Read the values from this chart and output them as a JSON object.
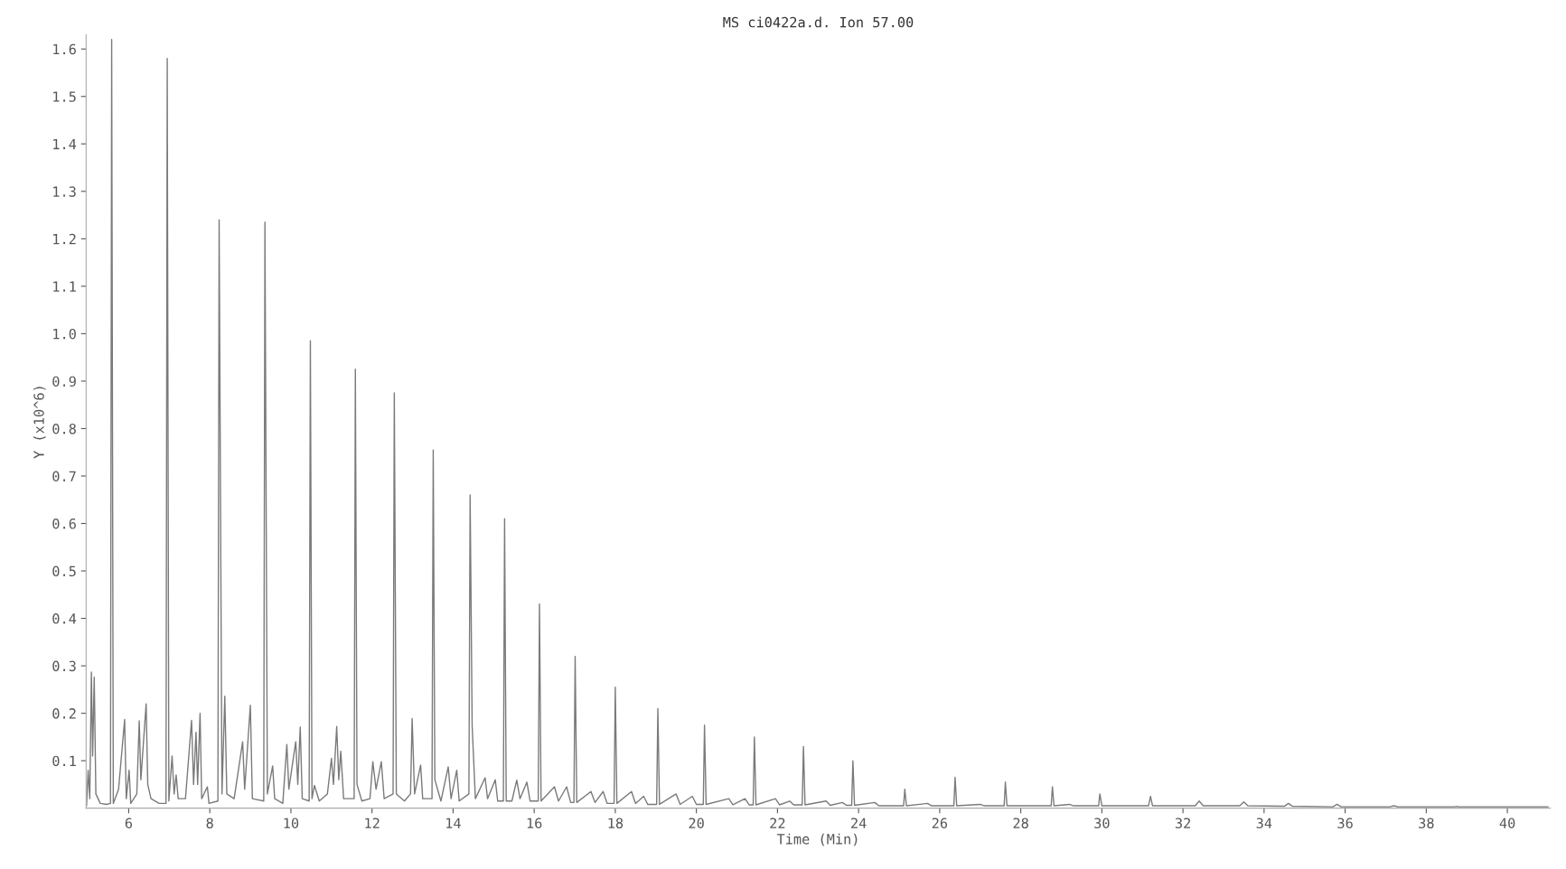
{
  "chart_data": {
    "type": "line",
    "title": "MS ci0422a.d. Ion 57.00",
    "xlabel": "Time (Min)",
    "ylabel": "Y (x10^6)",
    "xlim": [
      4.95,
      41.06
    ],
    "xticks": [
      6,
      8,
      10,
      12,
      14,
      16,
      18,
      20,
      22,
      24,
      26,
      28,
      30,
      32,
      34,
      36,
      38,
      40
    ],
    "ylim": [
      0,
      1.63
    ],
    "yticks": [
      0.1,
      0.2,
      0.3,
      0.4,
      0.5,
      0.6,
      0.7,
      0.8,
      0.9,
      {
        "value": 1.0,
        "label": "1.0"
      },
      1.1,
      1.2,
      1.3,
      1.4,
      1.5,
      1.6
    ],
    "grid": false,
    "series": [
      {
        "color": "#7a7a7a",
        "x": [
          4.96,
          5.0,
          5.04,
          5.08,
          5.11,
          5.15,
          5.19,
          5.3,
          5.45,
          5.55,
          5.58,
          5.62,
          5.75,
          5.9,
          5.94,
          6.01,
          6.05,
          6.2,
          6.26,
          6.3,
          6.43,
          6.47,
          6.55,
          6.75,
          6.92,
          6.95,
          6.99,
          7.07,
          7.12,
          7.17,
          7.22,
          7.4,
          7.55,
          7.6,
          7.66,
          7.7,
          7.76,
          7.8,
          7.94,
          7.98,
          8.2,
          8.23,
          8.3,
          8.37,
          8.42,
          8.6,
          8.81,
          8.86,
          9.0,
          9.05,
          9.33,
          9.36,
          9.42,
          9.55,
          9.6,
          9.8,
          9.9,
          9.95,
          10.05,
          10.12,
          10.17,
          10.23,
          10.28,
          10.45,
          10.48,
          10.52,
          10.58,
          10.7,
          10.9,
          11.0,
          11.05,
          11.13,
          11.18,
          11.23,
          11.3,
          11.56,
          11.59,
          11.63,
          11.75,
          11.95,
          12.02,
          12.1,
          12.23,
          12.3,
          12.52,
          12.55,
          12.6,
          12.8,
          12.95,
          12.99,
          13.05,
          13.2,
          13.25,
          13.48,
          13.51,
          13.55,
          13.7,
          13.88,
          13.95,
          14.09,
          14.15,
          14.39,
          14.42,
          14.47,
          14.55,
          14.79,
          14.85,
          15.04,
          15.1,
          15.24,
          15.27,
          15.31,
          15.45,
          15.57,
          15.65,
          15.82,
          15.9,
          16.1,
          16.13,
          16.17,
          16.5,
          16.6,
          16.8,
          16.9,
          16.98,
          17.01,
          17.05,
          17.4,
          17.5,
          17.7,
          17.8,
          17.97,
          18.0,
          18.04,
          18.4,
          18.5,
          18.7,
          18.8,
          19.02,
          19.05,
          19.09,
          19.5,
          19.6,
          19.9,
          20.0,
          20.17,
          20.2,
          20.24,
          20.8,
          20.9,
          21.2,
          21.3,
          21.4,
          21.43,
          21.47,
          21.95,
          22.05,
          22.3,
          22.4,
          22.61,
          22.64,
          22.68,
          23.2,
          23.3,
          23.6,
          23.7,
          23.83,
          23.86,
          23.9,
          24.4,
          24.5,
          25.11,
          25.14,
          25.18,
          25.7,
          25.8,
          26.35,
          26.38,
          26.42,
          27.0,
          27.1,
          27.59,
          27.62,
          27.66,
          28.75,
          28.78,
          28.82,
          29.2,
          29.3,
          29.92,
          29.95,
          30.0,
          31.15,
          31.2,
          31.25,
          32.3,
          32.4,
          32.5,
          33.4,
          33.5,
          33.6,
          34.5,
          34.6,
          34.7,
          35.7,
          35.8,
          35.9,
          37.1,
          37.2,
          37.3,
          38.7,
          38.75,
          38.8,
          41.0
        ],
        "values": [
          0.005,
          0.08,
          0.02,
          0.287,
          0.11,
          0.276,
          0.03,
          0.01,
          0.008,
          0.01,
          1.62,
          0.01,
          0.04,
          0.187,
          0.02,
          0.08,
          0.01,
          0.03,
          0.184,
          0.06,
          0.22,
          0.05,
          0.02,
          0.01,
          0.01,
          1.58,
          0.015,
          0.11,
          0.03,
          0.07,
          0.02,
          0.02,
          0.185,
          0.05,
          0.16,
          0.05,
          0.2,
          0.02,
          0.045,
          0.01,
          0.015,
          1.24,
          0.03,
          0.236,
          0.03,
          0.02,
          0.14,
          0.04,
          0.217,
          0.02,
          0.015,
          1.235,
          0.03,
          0.089,
          0.02,
          0.01,
          0.134,
          0.04,
          0.1,
          0.14,
          0.05,
          0.171,
          0.02,
          0.015,
          0.985,
          0.02,
          0.048,
          0.015,
          0.03,
          0.105,
          0.05,
          0.172,
          0.06,
          0.12,
          0.02,
          0.02,
          0.925,
          0.05,
          0.015,
          0.02,
          0.098,
          0.04,
          0.098,
          0.02,
          0.03,
          0.875,
          0.03,
          0.015,
          0.03,
          0.189,
          0.03,
          0.091,
          0.02,
          0.02,
          0.755,
          0.06,
          0.015,
          0.087,
          0.02,
          0.08,
          0.015,
          0.03,
          0.66,
          0.173,
          0.02,
          0.064,
          0.02,
          0.06,
          0.015,
          0.015,
          0.61,
          0.015,
          0.015,
          0.059,
          0.02,
          0.055,
          0.015,
          0.015,
          0.43,
          0.015,
          0.045,
          0.015,
          0.045,
          0.012,
          0.012,
          0.32,
          0.012,
          0.035,
          0.012,
          0.035,
          0.01,
          0.01,
          0.255,
          0.01,
          0.035,
          0.01,
          0.025,
          0.008,
          0.008,
          0.21,
          0.008,
          0.03,
          0.008,
          0.025,
          0.008,
          0.008,
          0.175,
          0.008,
          0.02,
          0.007,
          0.02,
          0.007,
          0.007,
          0.15,
          0.007,
          0.02,
          0.007,
          0.015,
          0.007,
          0.007,
          0.13,
          0.007,
          0.015,
          0.006,
          0.012,
          0.006,
          0.006,
          0.1,
          0.006,
          0.012,
          0.005,
          0.005,
          0.04,
          0.005,
          0.01,
          0.005,
          0.005,
          0.065,
          0.005,
          0.008,
          0.005,
          0.005,
          0.055,
          0.005,
          0.005,
          0.045,
          0.005,
          0.008,
          0.005,
          0.005,
          0.03,
          0.005,
          0.005,
          0.025,
          0.005,
          0.005,
          0.015,
          0.005,
          0.005,
          0.013,
          0.005,
          0.004,
          0.01,
          0.004,
          0.003,
          0.008,
          0.003,
          0.003,
          0.005,
          0.003,
          0.003,
          0.004,
          0.003,
          0.003
        ]
      }
    ]
  }
}
